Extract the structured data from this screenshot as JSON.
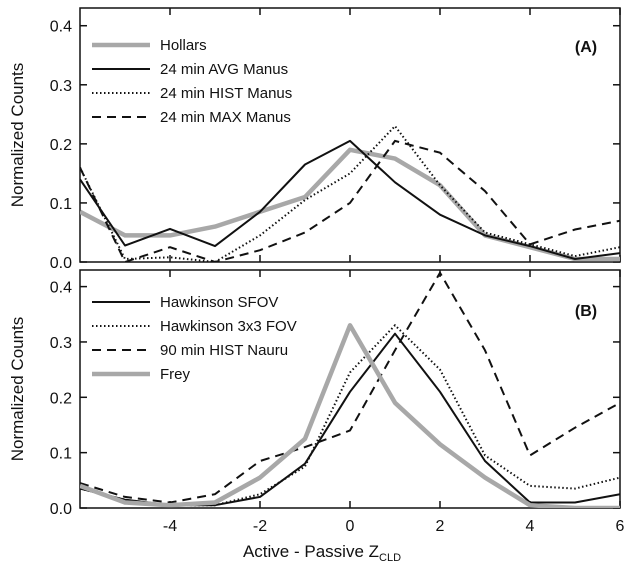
{
  "figure": {
    "xlabel_main": "Active - Passive Z",
    "xlabel_sub": "CLD"
  },
  "chart_data": [
    {
      "type": "line",
      "panel_label": "(A)",
      "xlim": [
        -6,
        6
      ],
      "ylim": [
        0,
        0.43
      ],
      "ylabel": "Normalized Counts",
      "yticks": [
        0.0,
        0.1,
        0.2,
        0.3,
        0.4
      ],
      "ytick_labels": [
        "0.0",
        "0.1",
        "0.2",
        "0.3",
        "0.4"
      ],
      "xticks": [
        -4,
        -2,
        0,
        2,
        4,
        6
      ],
      "xtick_labels": [],
      "legend_position": "top-left",
      "series": [
        {
          "name": "Hollars",
          "style": "thick-gray",
          "x": [
            -6,
            -5,
            -4,
            -3,
            -2,
            -1,
            0,
            1,
            2,
            3,
            4,
            5,
            6
          ],
          "y": [
            0.085,
            0.045,
            0.045,
            0.06,
            0.085,
            0.11,
            0.19,
            0.175,
            0.13,
            0.045,
            0.025,
            0.005,
            0.005
          ]
        },
        {
          "name": "24 min AVG Manus",
          "style": "solid",
          "x": [
            -6,
            -5,
            -4,
            -3,
            -2,
            -1,
            0,
            1,
            2,
            3,
            4,
            5,
            6
          ],
          "y": [
            0.14,
            0.028,
            0.056,
            0.027,
            0.085,
            0.165,
            0.205,
            0.135,
            0.08,
            0.045,
            0.027,
            0.005,
            0.015
          ]
        },
        {
          "name": "24 min HIST Manus",
          "style": "dotted",
          "x": [
            -6,
            -5,
            -4,
            -3,
            -2,
            -1,
            0,
            1,
            2,
            3,
            4,
            5,
            6
          ],
          "y": [
            0.16,
            0.005,
            0.008,
            0.0,
            0.045,
            0.105,
            0.15,
            0.23,
            0.13,
            0.05,
            0.03,
            0.01,
            0.025
          ]
        },
        {
          "name": "24 min MAX Manus",
          "style": "dashed",
          "x": [
            -6,
            -5,
            -4,
            -3,
            -2,
            -1,
            0,
            1,
            2,
            3,
            4,
            5,
            6
          ],
          "y": [
            0.16,
            0.0,
            0.025,
            0.0,
            0.02,
            0.05,
            0.1,
            0.205,
            0.185,
            0.12,
            0.03,
            0.055,
            0.07
          ]
        }
      ]
    },
    {
      "type": "line",
      "panel_label": "(B)",
      "xlim": [
        -6,
        6
      ],
      "ylim": [
        0,
        0.43
      ],
      "ylabel": "Normalized Counts",
      "yticks": [
        0.0,
        0.1,
        0.2,
        0.3,
        0.4
      ],
      "ytick_labels": [
        "0.0",
        "0.1",
        "0.2",
        "0.3",
        "0.4"
      ],
      "xticks": [
        -4,
        -2,
        0,
        2,
        4,
        6
      ],
      "xtick_labels": [
        "-4",
        "-2",
        "0",
        "2",
        "4",
        "6"
      ],
      "legend_position": "top-left",
      "series": [
        {
          "name": "Hawkinson SFOV",
          "style": "solid",
          "x": [
            -6,
            -5,
            -4,
            -3,
            -2,
            -1,
            0,
            1,
            2,
            3,
            4,
            5,
            6
          ],
          "y": [
            0.035,
            0.015,
            0.005,
            0.005,
            0.02,
            0.08,
            0.21,
            0.315,
            0.21,
            0.085,
            0.01,
            0.01,
            0.025
          ]
        },
        {
          "name": "Hawkinson 3x3 FOV",
          "style": "dotted",
          "x": [
            -6,
            -5,
            -4,
            -3,
            -2,
            -1,
            0,
            1,
            2,
            3,
            4,
            5,
            6
          ],
          "y": [
            0.035,
            0.015,
            0.005,
            0.005,
            0.025,
            0.075,
            0.245,
            0.33,
            0.25,
            0.095,
            0.04,
            0.035,
            0.055
          ]
        },
        {
          "name": "90 min HIST Nauru",
          "style": "dashed",
          "x": [
            -6,
            -5,
            -4,
            -3,
            -2,
            -1,
            0,
            1,
            2,
            3,
            4,
            5,
            6
          ],
          "y": [
            0.045,
            0.02,
            0.01,
            0.025,
            0.085,
            0.11,
            0.14,
            0.285,
            0.425,
            0.285,
            0.095,
            0.145,
            0.19
          ]
        },
        {
          "name": "Frey",
          "style": "thick-gray",
          "x": [
            -6,
            -5,
            -4,
            -3,
            -2,
            -1,
            0,
            1,
            2,
            3,
            4,
            5,
            6
          ],
          "y": [
            0.04,
            0.01,
            0.005,
            0.01,
            0.055,
            0.125,
            0.33,
            0.19,
            0.115,
            0.055,
            0.005,
            0.0,
            0.0
          ]
        }
      ]
    }
  ]
}
